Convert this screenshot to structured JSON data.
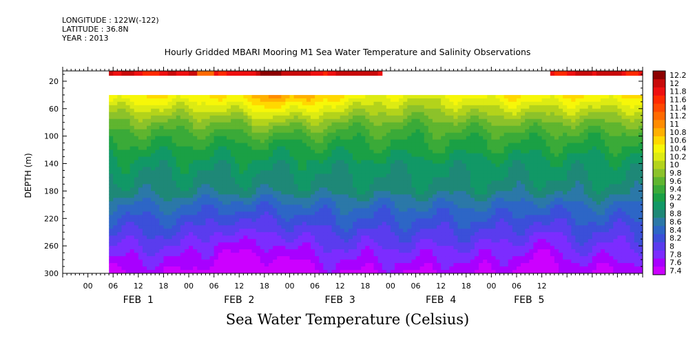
{
  "header": {
    "longitude": "LONGITUDE : 122W(-122)",
    "latitude": "LATITUDE : 36.8N",
    "year": "YEAR : 2013"
  },
  "title": "Hourly Gridded MBARI Mooring M1 Sea Water Temperature and Salinity Observations",
  "bottom_title": "Sea Water Temperature (Celsius)",
  "chart_data": {
    "type": "heatmap",
    "title": "Hourly Gridded MBARI Mooring M1 Sea Water Temperature and Salinity Observations",
    "xlabel": "",
    "ylabel": "DEPTH (m)",
    "colorbar_label": "Sea Water Temperature (Celsius)",
    "x_range_hours": [
      -6,
      132
    ],
    "y_range": [
      300,
      5
    ],
    "y_ticks": [
      20,
      60,
      100,
      140,
      180,
      220,
      260,
      300
    ],
    "x_hour_ticks": [
      {
        "h": 0,
        "label": "00"
      },
      {
        "h": 6,
        "label": "06"
      },
      {
        "h": 12,
        "label": "12"
      },
      {
        "h": 18,
        "label": "18"
      },
      {
        "h": 24,
        "label": "00"
      },
      {
        "h": 30,
        "label": "06"
      },
      {
        "h": 36,
        "label": "12"
      },
      {
        "h": 42,
        "label": "18"
      },
      {
        "h": 48,
        "label": "00"
      },
      {
        "h": 54,
        "label": "06"
      },
      {
        "h": 60,
        "label": "12"
      },
      {
        "h": 66,
        "label": "18"
      },
      {
        "h": 72,
        "label": "00"
      },
      {
        "h": 78,
        "label": "06"
      },
      {
        "h": 84,
        "label": "12"
      },
      {
        "h": 90,
        "label": "18"
      },
      {
        "h": 96,
        "label": "00"
      },
      {
        "h": 102,
        "label": "06"
      },
      {
        "h": 108,
        "label": "12"
      }
    ],
    "x_day_labels": [
      {
        "h": 12,
        "label": "FEB  1"
      },
      {
        "h": 36,
        "label": "FEB  2"
      },
      {
        "h": 60,
        "label": "FEB  3"
      },
      {
        "h": 84,
        "label": "FEB  4"
      },
      {
        "h": 105,
        "label": "FEB  5"
      }
    ],
    "colorbar_levels": [
      "7.4",
      "7.6",
      "7.8",
      "8",
      "8.2",
      "8.4",
      "8.6",
      "8.8",
      "9",
      "9.2",
      "9.4",
      "9.6",
      "9.8",
      "10",
      "10.2",
      "10.4",
      "10.6",
      "10.8",
      "11",
      "11.2",
      "11.4",
      "11.6",
      "11.8",
      "12",
      "12.2"
    ],
    "colorbar_colors": [
      "#cc00ff",
      "#a800ff",
      "#7c2cff",
      "#5a3cee",
      "#3b4fd9",
      "#2d66c6",
      "#2b78a8",
      "#1e8877",
      "#119866",
      "#1aa045",
      "#3aaa38",
      "#5fb52f",
      "#8cc22a",
      "#b3d31b",
      "#ddeb13",
      "#f7f708",
      "#ffd800",
      "#ffb000",
      "#ff8c00",
      "#ff6a00",
      "#ff4800",
      "#ff2a00",
      "#ee1010",
      "#c80a0a",
      "#8c0000"
    ],
    "data_extent_hours": [
      5,
      132
    ],
    "surface_sensor_depth_range": [
      5,
      12
    ],
    "surface_sensor_segments": [
      [
        5,
        70
      ],
      [
        110,
        132
      ]
    ],
    "main_depth_range": [
      40,
      300
    ],
    "depth_profile": [
      {
        "depth": 40,
        "temp": 10.6
      },
      {
        "depth": 60,
        "temp": 10.2
      },
      {
        "depth": 80,
        "temp": 9.8
      },
      {
        "depth": 100,
        "temp": 9.5
      },
      {
        "depth": 120,
        "temp": 9.3
      },
      {
        "depth": 140,
        "temp": 9.1
      },
      {
        "depth": 160,
        "temp": 9.0
      },
      {
        "depth": 180,
        "temp": 8.9
      },
      {
        "depth": 200,
        "temp": 8.6
      },
      {
        "depth": 220,
        "temp": 8.4
      },
      {
        "depth": 240,
        "temp": 8.2
      },
      {
        "depth": 260,
        "temp": 8.0
      },
      {
        "depth": 280,
        "temp": 7.8
      },
      {
        "depth": 300,
        "temp": 7.6
      }
    ]
  }
}
